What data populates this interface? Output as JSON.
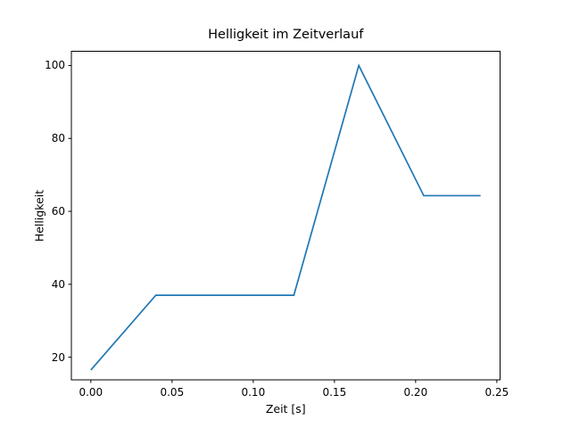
{
  "figure": {
    "background_color": "#ffffff",
    "text_color": "#000000",
    "spine_color": "#000000"
  },
  "chart_data": {
    "type": "line",
    "title": "Helligkeit im Zeitverlauf",
    "xlabel": "Zeit [s]",
    "ylabel": "Helligkeit",
    "series": [
      {
        "name": "Helligkeit",
        "x": [
          0.0,
          0.04,
          0.125,
          0.165,
          0.205,
          0.24
        ],
        "y": [
          16.5,
          37,
          37,
          100,
          64.3,
          64.3
        ],
        "color": "#1f77b4"
      }
    ],
    "x_ticks": [
      0.0,
      0.05,
      0.1,
      0.15,
      0.2,
      0.25
    ],
    "x_tick_labels": [
      "0.00",
      "0.05",
      "0.10",
      "0.15",
      "0.20",
      "0.25"
    ],
    "y_ticks": [
      20,
      40,
      60,
      80,
      100
    ],
    "y_tick_labels": [
      "20",
      "40",
      "60",
      "80",
      "100"
    ],
    "xlim": [
      -0.012,
      0.252
    ],
    "ylim": [
      13.8,
      103.9
    ],
    "grid": false,
    "legend": null,
    "markers": false
  }
}
